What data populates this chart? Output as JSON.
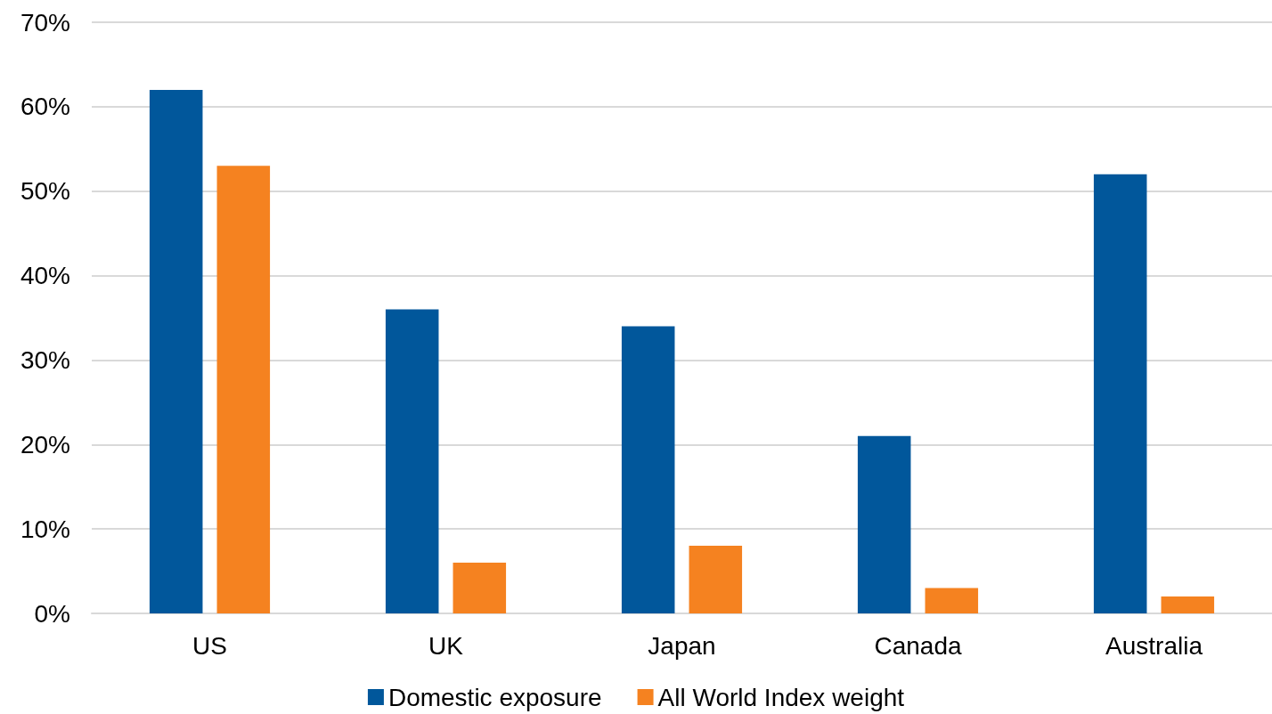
{
  "chart_data": {
    "type": "bar",
    "categories": [
      "US",
      "UK",
      "Japan",
      "Canada",
      "Australia"
    ],
    "series": [
      {
        "name": "Domestic exposure",
        "color": "#01579b",
        "values": [
          62,
          36,
          34,
          21,
          52
        ]
      },
      {
        "name": "All World Index weight",
        "color": "#f58220",
        "values": [
          53,
          6,
          8,
          3,
          2
        ]
      }
    ],
    "ylim": [
      0,
      70
    ],
    "yticks": [
      {
        "value": 0,
        "label": "0%"
      },
      {
        "value": 10,
        "label": "10%"
      },
      {
        "value": 20,
        "label": "20%"
      },
      {
        "value": 30,
        "label": "30%"
      },
      {
        "value": 40,
        "label": "40%"
      },
      {
        "value": 50,
        "label": "50%"
      },
      {
        "value": 60,
        "label": "60%"
      },
      {
        "value": 70,
        "label": "70%"
      }
    ],
    "grid": "y",
    "legend": "bottom"
  }
}
